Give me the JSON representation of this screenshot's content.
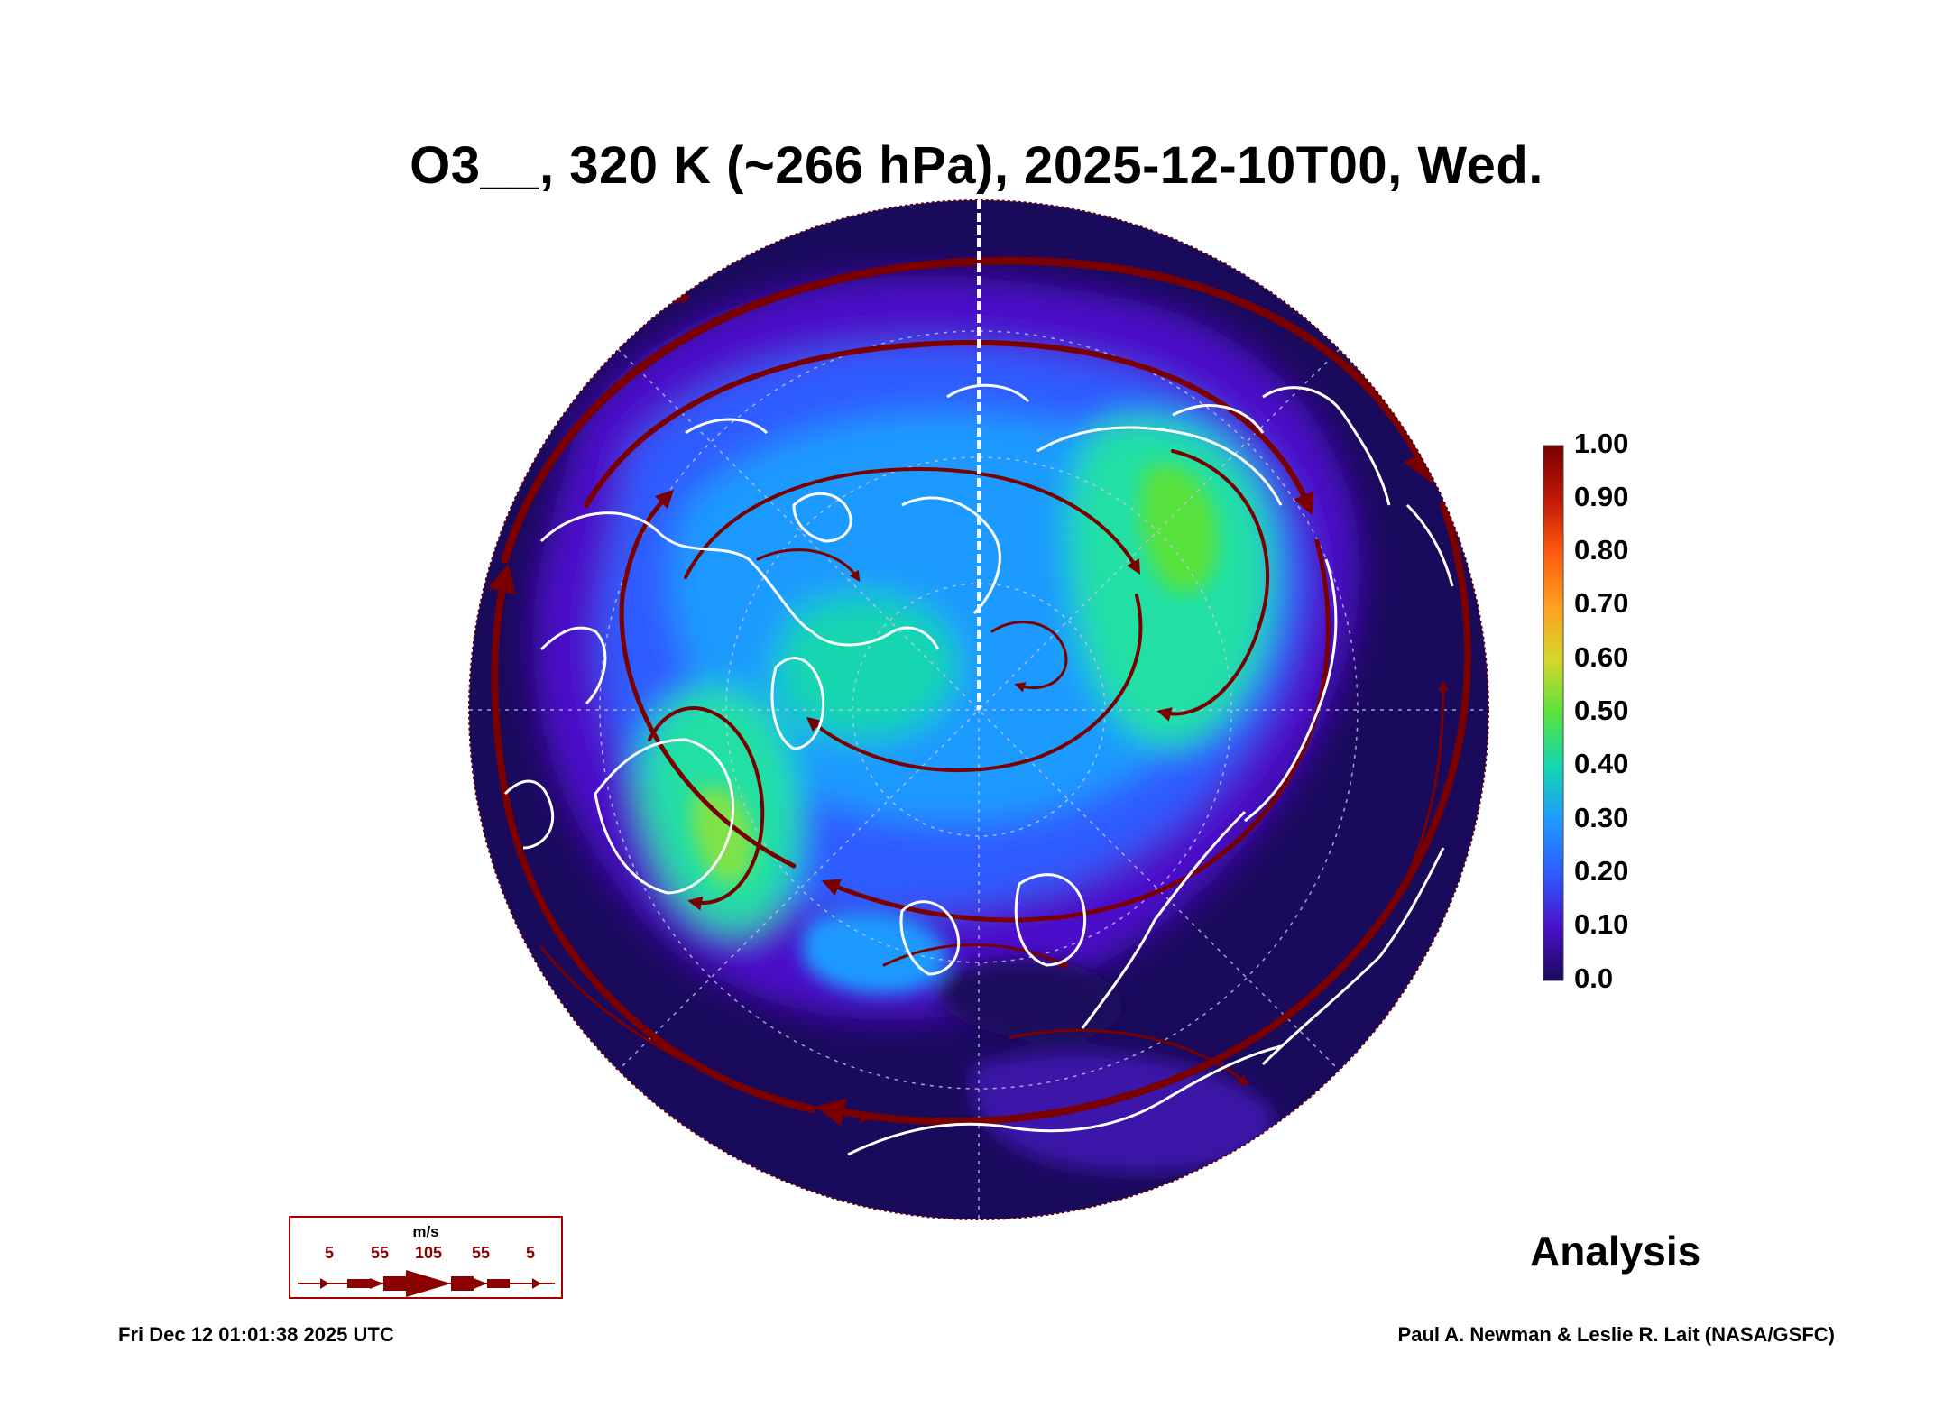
{
  "title": "O3__, 320 K (~266 hPa), 2025-12-10T00, Wed.",
  "colorbar": {
    "labels": [
      "1.00",
      "0.90",
      "0.80",
      "0.70",
      "0.60",
      "0.50",
      "0.40",
      "0.30",
      "0.20",
      "0.10",
      "0.0"
    ],
    "colors": [
      "#1a0a5c",
      "#4b11c9",
      "#5a3cff",
      "#2f6bff",
      "#1f9aff",
      "#14c8e0",
      "#22e0a4",
      "#7fe24a",
      "#d9d92a",
      "#ff8c1a",
      "#e02a10",
      "#8b0000"
    ]
  },
  "wind_legend": {
    "unit": "m/s",
    "values": [
      "5",
      "55",
      "105",
      "55",
      "5"
    ]
  },
  "map": {
    "projection": "north polar stereographic",
    "variable": "O3",
    "colors": {
      "ocean_low": "#1a0a5c",
      "streamline": "#7a0000",
      "coastline": "#ffffff",
      "gridline": "#c8c8e8"
    }
  },
  "analysis_label": "Analysis",
  "timestamp": "Fri Dec 12 01:01:38 2025 UTC",
  "credit": "Paul A. Newman & Leslie R. Lait (NASA/GSFC)"
}
